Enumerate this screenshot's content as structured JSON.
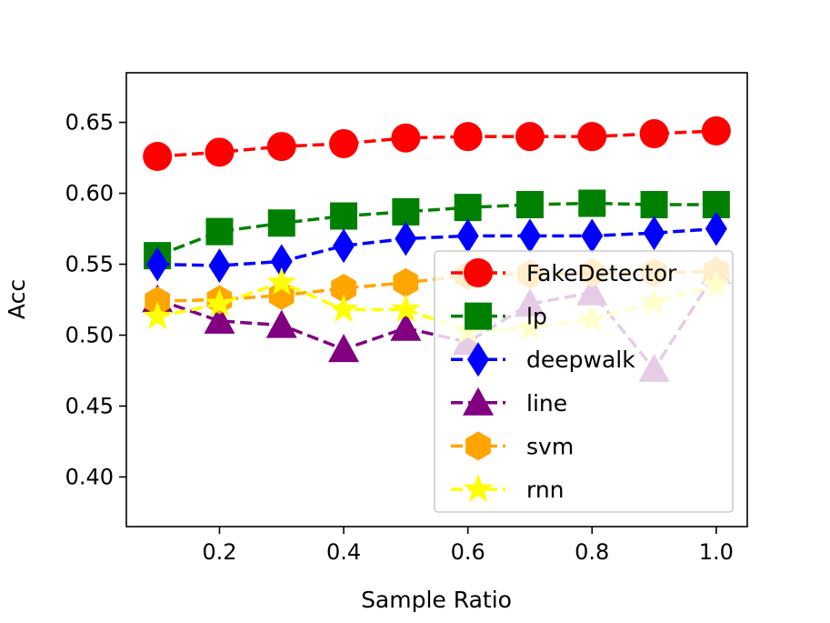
{
  "chart_data": {
    "type": "line",
    "title": "",
    "xlabel": "Sample Ratio",
    "ylabel": "Acc",
    "xlim": [
      0.05,
      1.05
    ],
    "ylim": [
      0.365,
      0.685
    ],
    "x": [
      0.1,
      0.2,
      0.3,
      0.4,
      0.5,
      0.6,
      0.7,
      0.8,
      0.9,
      1.0
    ],
    "xticks": [
      0.2,
      0.4,
      0.6,
      0.8,
      1.0
    ],
    "xtick_labels": [
      "0.2",
      "0.4",
      "0.6",
      "0.8",
      "1.0"
    ],
    "yticks": [
      0.4,
      0.45,
      0.5,
      0.55,
      0.6,
      0.65
    ],
    "ytick_labels": [
      "0.40",
      "0.45",
      "0.50",
      "0.55",
      "0.60",
      "0.65"
    ],
    "grid": false,
    "legend_position": "lower-right",
    "series": [
      {
        "name": "FakeDetector",
        "color": "#ff0000",
        "marker": "circle",
        "values": [
          0.626,
          0.629,
          0.633,
          0.635,
          0.639,
          0.64,
          0.64,
          0.64,
          0.642,
          0.644
        ]
      },
      {
        "name": "lp",
        "color": "#008000",
        "marker": "square",
        "values": [
          0.556,
          0.573,
          0.579,
          0.584,
          0.587,
          0.59,
          0.592,
          0.593,
          0.592,
          0.592
        ]
      },
      {
        "name": "deepwalk",
        "color": "#0000ff",
        "marker": "diamond",
        "values": [
          0.55,
          0.549,
          0.552,
          0.563,
          0.568,
          0.57,
          0.57,
          0.57,
          0.572,
          0.575
        ]
      },
      {
        "name": "line",
        "color": "#800080",
        "marker": "triangle",
        "values": [
          0.525,
          0.51,
          0.507,
          0.49,
          0.505,
          0.495,
          0.522,
          0.53,
          0.476,
          0.545
        ]
      },
      {
        "name": "svm",
        "color": "#ffa500",
        "marker": "hexagon",
        "values": [
          0.524,
          0.525,
          0.528,
          0.533,
          0.537,
          0.542,
          0.543,
          0.544,
          0.544,
          0.545
        ]
      },
      {
        "name": "rnn",
        "color": "#ffff00",
        "marker": "star",
        "values": [
          0.513,
          0.522,
          0.537,
          0.518,
          0.518,
          0.503,
          0.505,
          0.511,
          0.523,
          0.535
        ]
      }
    ]
  }
}
